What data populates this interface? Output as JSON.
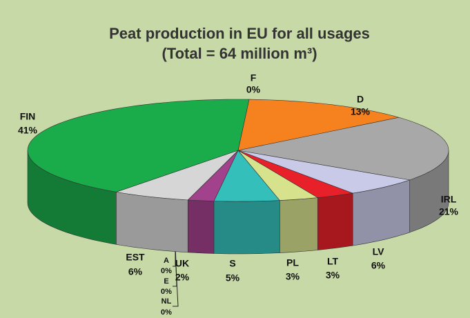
{
  "chart_data": {
    "type": "pie",
    "title": "Peat production in EU for all usages",
    "subtitle": "(Total = 64 million m³)",
    "categories": [
      "F",
      "D",
      "IRL",
      "LV",
      "LT",
      "PL",
      "S",
      "UK",
      "NL",
      "E",
      "A",
      "EST",
      "FIN"
    ],
    "values": [
      0,
      13,
      21,
      6,
      3,
      3,
      5,
      2,
      0,
      0,
      0,
      6,
      41
    ],
    "value_labels": [
      "0%",
      "13%",
      "21%",
      "6%",
      "3%",
      "3%",
      "5%",
      "2%",
      "0%",
      "0%",
      "0%",
      "6%",
      "41%"
    ],
    "colors": [
      "#1f3a93",
      "#f5821f",
      "#a8a8a8",
      "#c9c9e8",
      "#e8202a",
      "#d6e28c",
      "#35bfba",
      "#a2418c",
      "#ffffff",
      "#ffffff",
      "#ffffff",
      "#d6d6d6",
      "#1aab4a"
    ]
  }
}
